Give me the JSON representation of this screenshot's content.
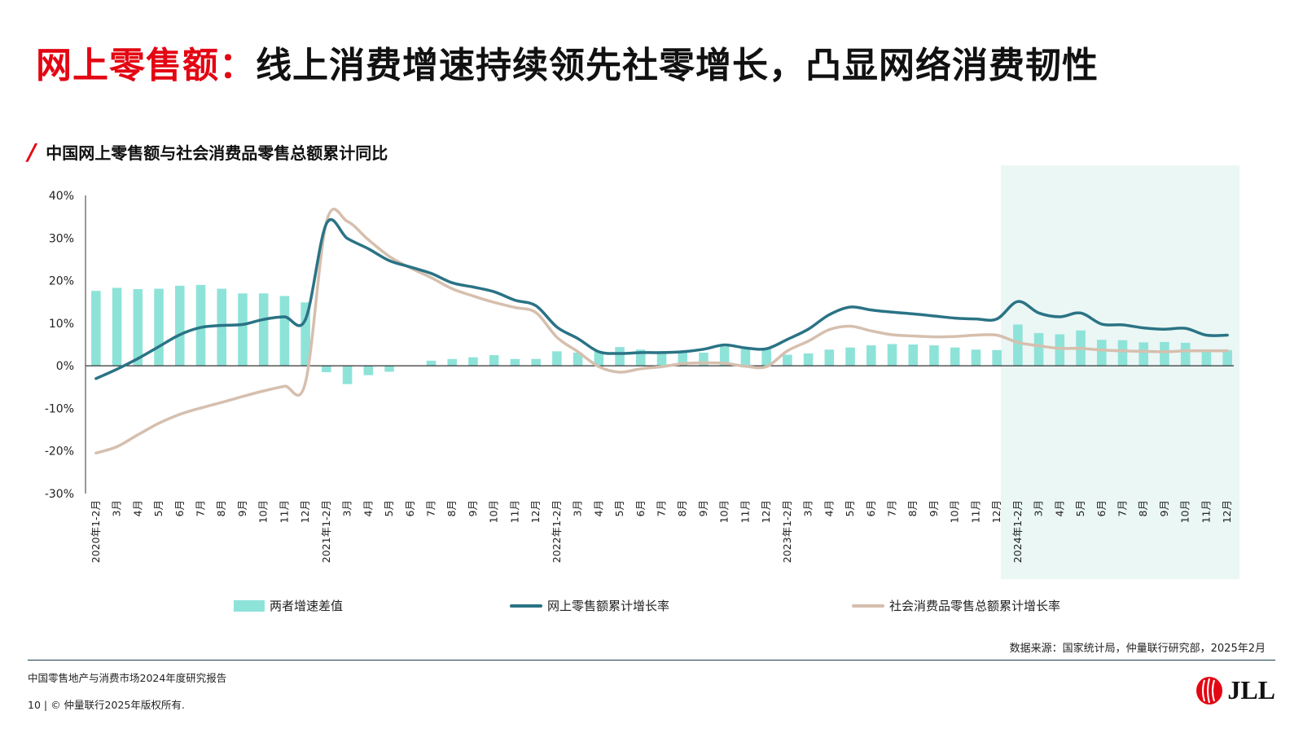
{
  "headline": {
    "red": "网上零售额：",
    "black": "线上消费增速持续领先社零增长，凸显网络消费韧性"
  },
  "chart_title": "中国网上零售额与社会消费品零售总额累计同比",
  "colors": {
    "bar": "#8ee3d9",
    "online": "#2a7385",
    "social": "#d6bfae",
    "highlight": "#eaf7f5",
    "title_red": "#e30613"
  },
  "chart_data": {
    "type": "bar+line",
    "categories": [
      "2020年1-2月",
      "3月",
      "4月",
      "5月",
      "6月",
      "7月",
      "8月",
      "9月",
      "10月",
      "11月",
      "12月",
      "2021年1-2月",
      "3月",
      "4月",
      "5月",
      "6月",
      "7月",
      "8月",
      "9月",
      "10月",
      "11月",
      "12月",
      "2022年1-2月",
      "3月",
      "4月",
      "5月",
      "6月",
      "7月",
      "8月",
      "9月",
      "10月",
      "11月",
      "12月",
      "2023年1-2月",
      "3月",
      "4月",
      "5月",
      "6月",
      "7月",
      "8月",
      "9月",
      "10月",
      "11月",
      "12月",
      "2024年1-2月",
      "3月",
      "4月",
      "5月",
      "6月",
      "7月",
      "8月",
      "9月",
      "10月",
      "11月",
      "12月"
    ],
    "y_ticks": [
      "40%",
      "30%",
      "20%",
      "10%",
      "0%",
      "-10%",
      "-20%",
      "-30%"
    ],
    "ylim": [
      -30,
      40
    ],
    "highlight_from_index": 44,
    "series": [
      {
        "name": "两者增速差值",
        "kind": "bar",
        "values": [
          17.6,
          18.3,
          18.0,
          18.1,
          18.8,
          19.0,
          18.1,
          17.0,
          17.0,
          16.4,
          14.9,
          -1.5,
          -4.3,
          -2.2,
          -1.4,
          0.1,
          1.2,
          1.6,
          2.0,
          2.5,
          1.6,
          1.6,
          3.4,
          3.1,
          3.4,
          4.4,
          3.8,
          3.4,
          3.1,
          3.1,
          4.5,
          4.0,
          4.2,
          2.6,
          2.9,
          3.8,
          4.3,
          4.8,
          5.1,
          5.0,
          4.8,
          4.3,
          3.8,
          3.7,
          9.7,
          7.7,
          7.4,
          8.3,
          6.1,
          6.0,
          5.5,
          5.6,
          5.4,
          3.8,
          3.7
        ]
      },
      {
        "name": "网上零售额累计增长率",
        "kind": "line",
        "values": [
          -3.0,
          -0.8,
          1.7,
          4.5,
          7.3,
          9.0,
          9.5,
          9.7,
          10.9,
          11.5,
          10.9,
          33.4,
          29.9,
          27.5,
          24.7,
          23.2,
          21.7,
          19.5,
          18.5,
          17.4,
          15.4,
          14.1,
          9.1,
          6.4,
          3.3,
          2.9,
          3.1,
          3.1,
          3.3,
          3.9,
          4.9,
          4.2,
          4.0,
          6.2,
          8.6,
          12.0,
          13.8,
          13.1,
          12.6,
          12.2,
          11.7,
          11.2,
          11.0,
          11.0,
          15.1,
          12.4,
          11.5,
          12.4,
          9.8,
          9.6,
          8.9,
          8.6,
          8.8,
          7.2,
          7.2
        ]
      },
      {
        "name": "社会消费品零售总额累计增长率",
        "kind": "line",
        "values": [
          -20.5,
          -19.0,
          -16.2,
          -13.5,
          -11.4,
          -9.9,
          -8.6,
          -7.2,
          -5.9,
          -4.8,
          -3.9,
          33.8,
          33.9,
          29.6,
          25.7,
          23.0,
          20.7,
          18.1,
          16.4,
          14.9,
          13.7,
          12.5,
          6.7,
          3.3,
          -0.2,
          -1.5,
          -0.7,
          -0.2,
          0.5,
          0.7,
          0.6,
          -0.1,
          -0.2,
          3.5,
          5.8,
          8.5,
          9.3,
          8.2,
          7.3,
          7.0,
          6.8,
          6.9,
          7.2,
          7.2,
          5.5,
          4.7,
          4.1,
          4.1,
          3.7,
          3.5,
          3.4,
          3.3,
          3.5,
          3.5,
          3.5
        ]
      }
    ]
  },
  "legend": {
    "bar": "两者增速差值",
    "online": "网上零售额累计增长率",
    "social": "社会消费品零售总额累计增长率"
  },
  "source": "数据来源：国家统计局，仲量联行研究部，2025年2月",
  "footer": {
    "report": "中国零售地产与消费市场2024年度研究报告",
    "copyright": "10 | © 仲量联行2025年版权所有."
  },
  "logo": {
    "text": "JLL"
  }
}
